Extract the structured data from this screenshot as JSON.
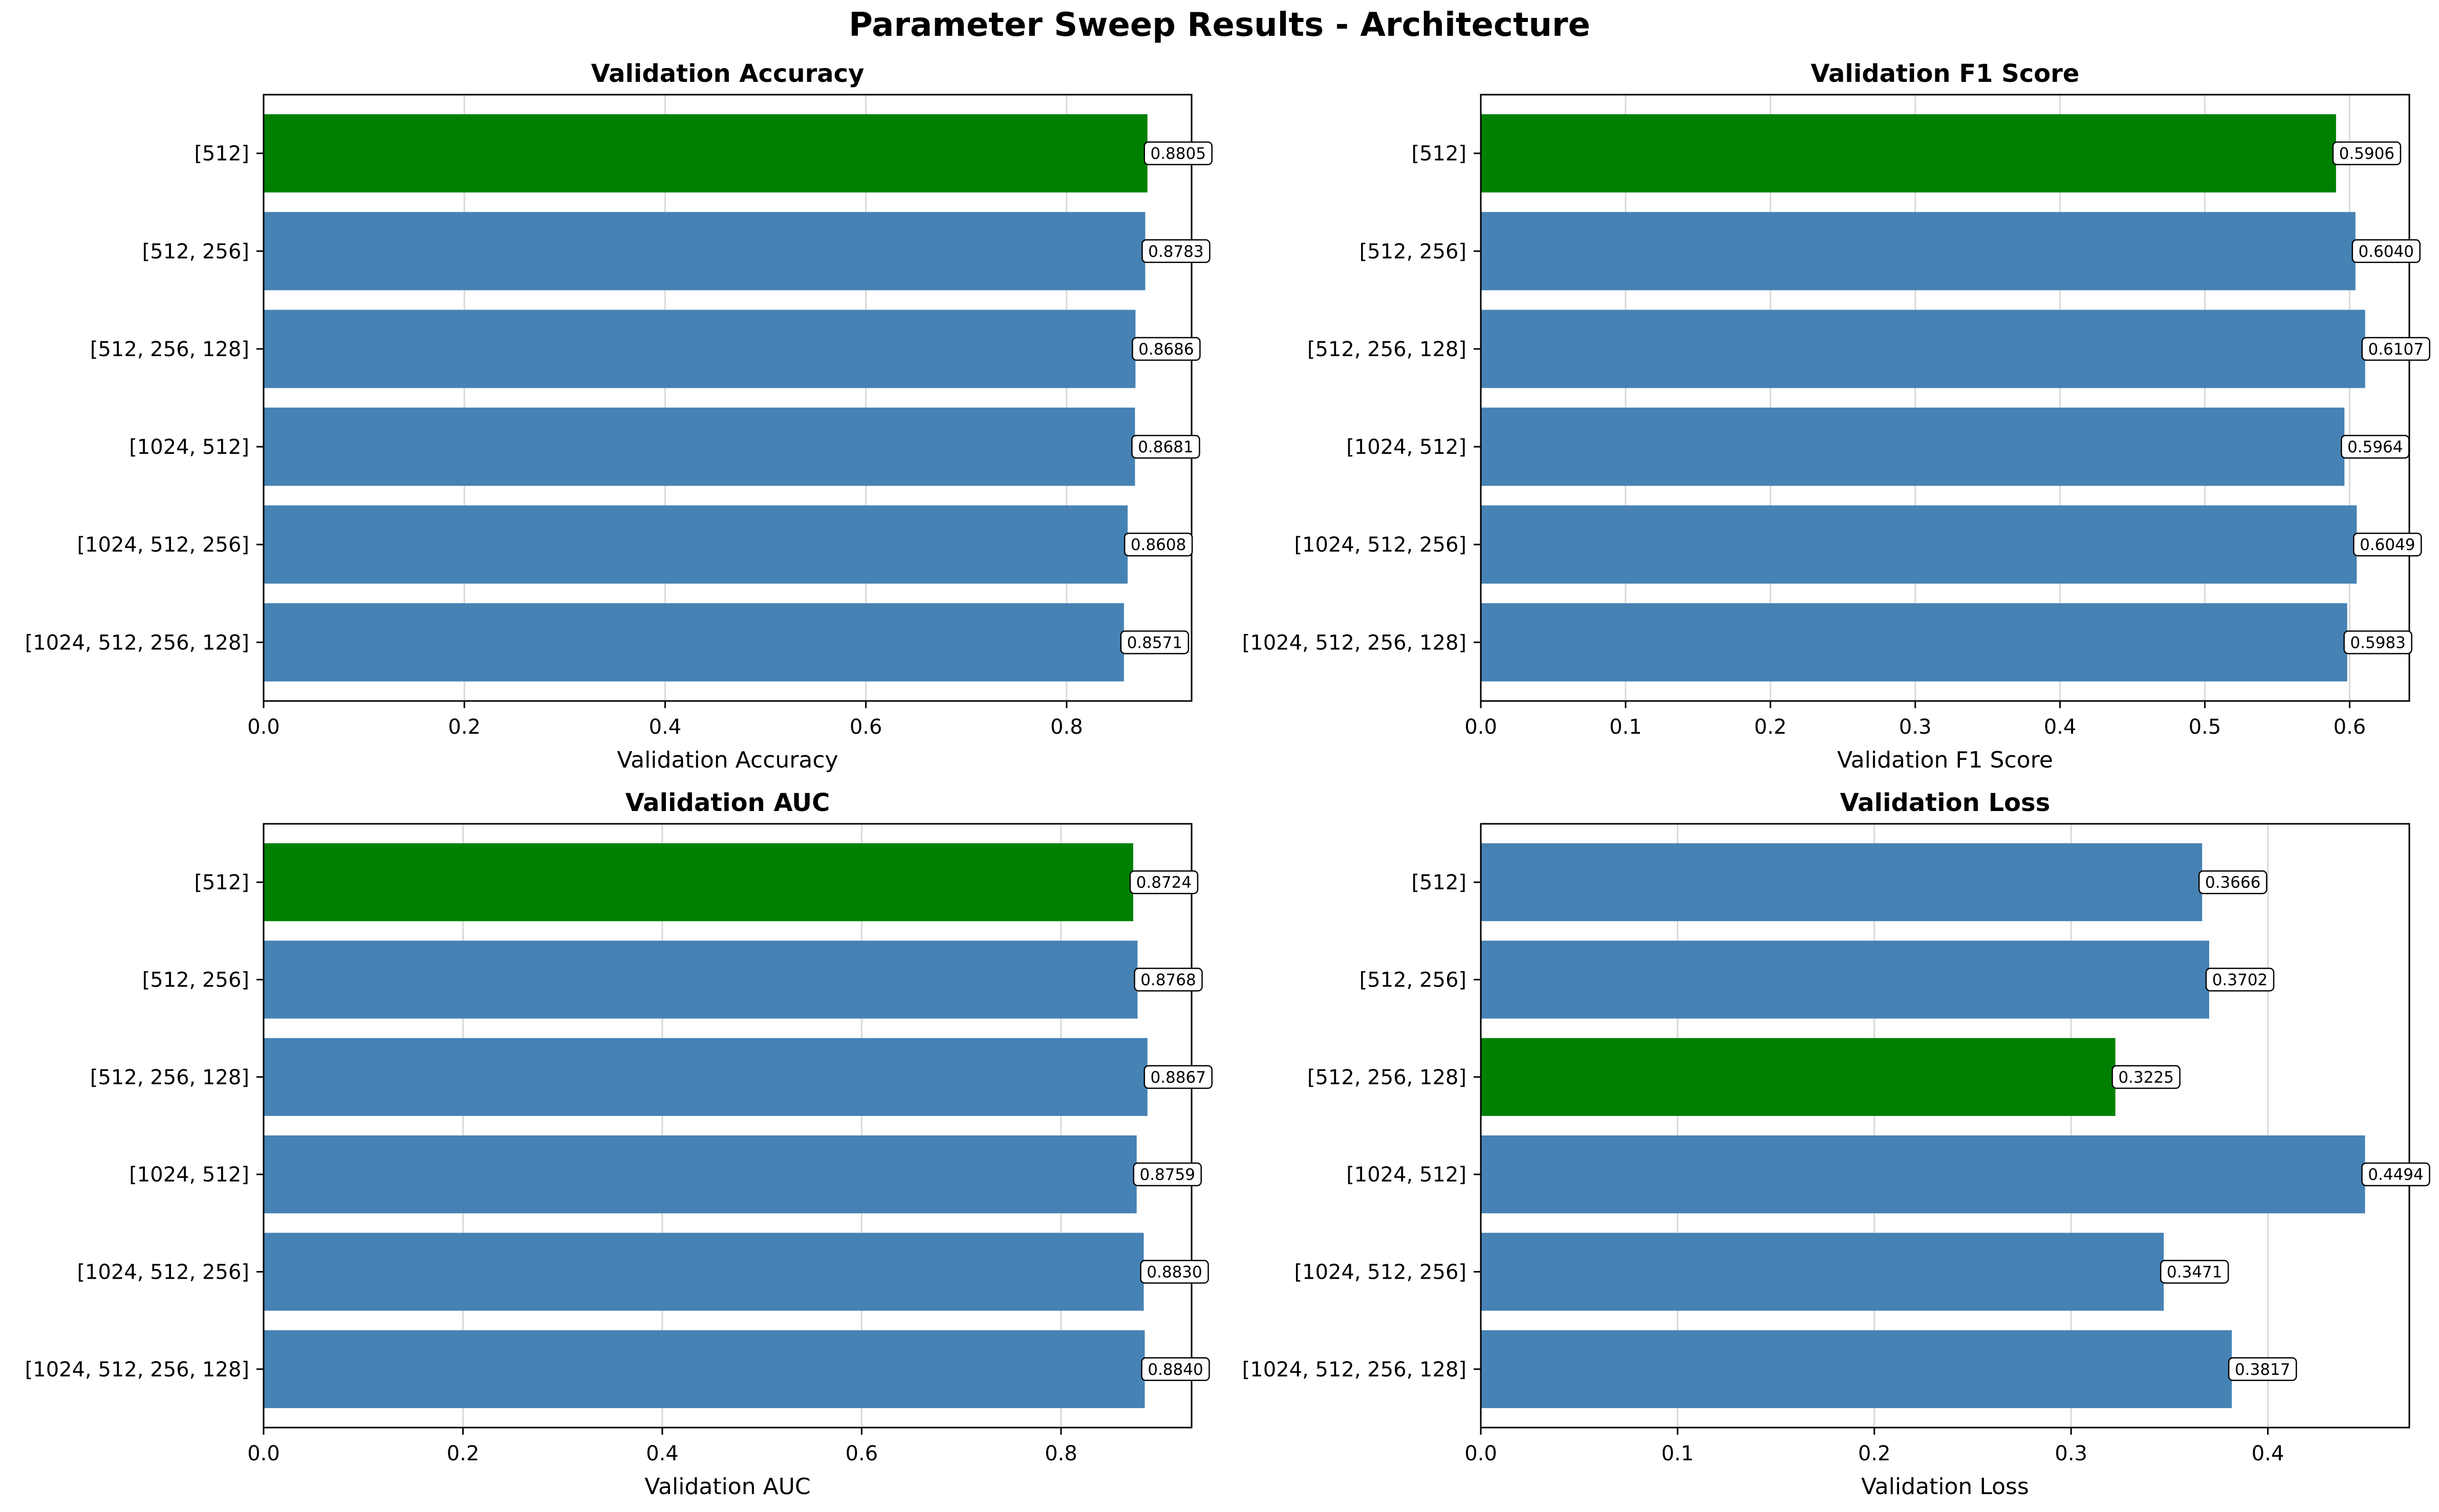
{
  "figure": {
    "title": "Parameter Sweep Results - Architecture"
  },
  "colors": {
    "bar": "#4682b4",
    "best": "#008000",
    "grid": "#d9d9d9",
    "axis": "#000000"
  },
  "chart_data": [
    {
      "type": "bar",
      "orientation": "horizontal",
      "title": "Validation Accuracy",
      "xlabel": "Validation Accuracy",
      "ylabel": "",
      "categories": [
        "[512]",
        "[512, 256]",
        "[512, 256, 128]",
        "[1024, 512]",
        "[1024, 512, 256]",
        "[1024, 512, 256, 128]"
      ],
      "values": [
        0.8805,
        0.8783,
        0.8686,
        0.8681,
        0.8608,
        0.8571
      ],
      "value_labels": [
        "0.8805",
        "0.8783",
        "0.8686",
        "0.8681",
        "0.8608",
        "0.8571"
      ],
      "best_index": 0,
      "xlim": [
        0,
        0.9245
      ],
      "xticks": [
        0,
        0.2,
        0.4,
        0.6,
        0.8
      ],
      "xtick_labels": [
        "0.0",
        "0.2",
        "0.4",
        "0.6",
        "0.8"
      ],
      "grid": "x"
    },
    {
      "type": "bar",
      "orientation": "horizontal",
      "title": "Validation F1 Score",
      "xlabel": "Validation F1 Score",
      "ylabel": "",
      "categories": [
        "[512]",
        "[512, 256]",
        "[512, 256, 128]",
        "[1024, 512]",
        "[1024, 512, 256]",
        "[1024, 512, 256, 128]"
      ],
      "values": [
        0.5906,
        0.604,
        0.6107,
        0.5964,
        0.6049,
        0.5983
      ],
      "value_labels": [
        "0.5906",
        "0.6040",
        "0.6107",
        "0.5964",
        "0.6049",
        "0.5983"
      ],
      "best_index": 0,
      "xlim": [
        0,
        0.6412
      ],
      "xticks": [
        0,
        0.1,
        0.2,
        0.3,
        0.4,
        0.5,
        0.6
      ],
      "xtick_labels": [
        "0.0",
        "0.1",
        "0.2",
        "0.3",
        "0.4",
        "0.5",
        "0.6"
      ],
      "grid": "x"
    },
    {
      "type": "bar",
      "orientation": "horizontal",
      "title": "Validation AUC",
      "xlabel": "Validation AUC",
      "ylabel": "",
      "categories": [
        "[512]",
        "[512, 256]",
        "[512, 256, 128]",
        "[1024, 512]",
        "[1024, 512, 256]",
        "[1024, 512, 256, 128]"
      ],
      "values": [
        0.8724,
        0.8768,
        0.8867,
        0.8759,
        0.883,
        0.884
      ],
      "value_labels": [
        "0.8724",
        "0.8768",
        "0.8867",
        "0.8759",
        "0.8830",
        "0.8840"
      ],
      "best_index": 0,
      "xlim": [
        0,
        0.931
      ],
      "xticks": [
        0,
        0.2,
        0.4,
        0.6,
        0.8
      ],
      "xtick_labels": [
        "0.0",
        "0.2",
        "0.4",
        "0.6",
        "0.8"
      ],
      "grid": "x"
    },
    {
      "type": "bar",
      "orientation": "horizontal",
      "title": "Validation Loss",
      "xlabel": "Validation Loss",
      "ylabel": "",
      "categories": [
        "[512]",
        "[512, 256]",
        "[512, 256, 128]",
        "[1024, 512]",
        "[1024, 512, 256]",
        "[1024, 512, 256, 128]"
      ],
      "values": [
        0.3666,
        0.3702,
        0.3225,
        0.4494,
        0.3471,
        0.3817
      ],
      "value_labels": [
        "0.3666",
        "0.3702",
        "0.3225",
        "0.4494",
        "0.3471",
        "0.3817"
      ],
      "best_index": 2,
      "xlim": [
        0,
        0.4719
      ],
      "xticks": [
        0,
        0.1,
        0.2,
        0.3,
        0.4
      ],
      "xtick_labels": [
        "0.0",
        "0.1",
        "0.2",
        "0.3",
        "0.4"
      ],
      "grid": "x"
    }
  ]
}
